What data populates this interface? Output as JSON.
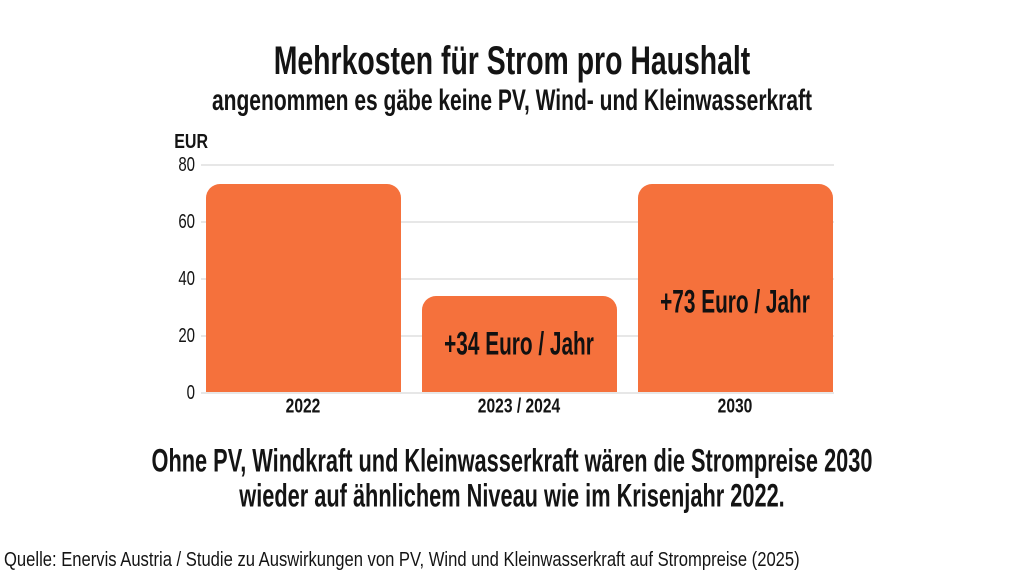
{
  "chart_data": {
    "type": "bar",
    "categories": [
      "2022",
      "2023 / 2024",
      "2030"
    ],
    "values": [
      73,
      34,
      73
    ],
    "bar_labels": [
      "",
      "+34 Euro / Jahr",
      "+73 Euro / Jahr"
    ],
    "title": "Mehrkosten für Strom pro Haushalt",
    "subtitle": "angenommen es gäbe keine PV, Wind- und Kleinwasserkraft",
    "unit_label": "EUR",
    "ylabel": "EUR",
    "xlabel": "",
    "y_ticks": [
      0,
      20,
      40,
      60,
      80
    ],
    "ylim": [
      0,
      80
    ],
    "grid": true,
    "legend": false,
    "bar_color": "#F5713C",
    "gridline_color": "#E7E7E7"
  },
  "caption": {
    "line1": "Ohne PV, Windkraft und Kleinwasserkraft wären die Strompreise 2030",
    "line2": "wieder auf ähnlichem Niveau wie im Krisenjahr 2022."
  },
  "footer": {
    "source": "Quelle: Enervis Austria / Studie zu Auswirkungen von PV, Wind und Kleinwasserkraft auf Strompreise (2025)"
  }
}
